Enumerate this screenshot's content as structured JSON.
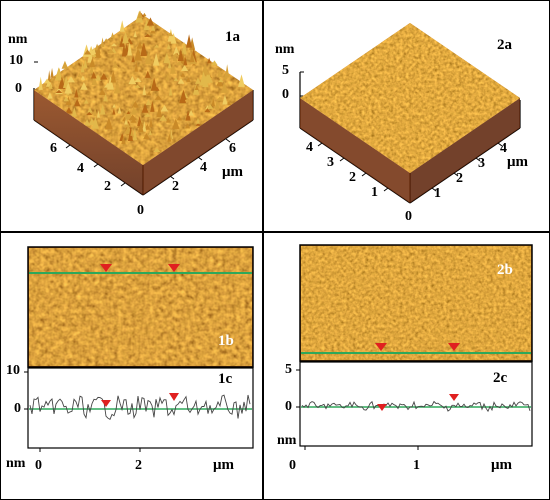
{
  "panel_1a": {
    "label": "1a",
    "z_unit": "nm",
    "z_ticks": [
      "10",
      "0"
    ],
    "left_axis_ticks": [
      "6",
      "4",
      "2"
    ],
    "right_axis_ticks": [
      "0",
      "2",
      "4",
      "6"
    ],
    "unit": "μm"
  },
  "panel_2a": {
    "label": "2a",
    "z_unit": "nm",
    "z_ticks": [
      "5",
      "0"
    ],
    "left_axis_ticks": [
      "4",
      "3",
      "2",
      "1"
    ],
    "right_axis_ticks": [
      "0",
      "1",
      "2",
      "3",
      "4"
    ],
    "unit": "μm"
  },
  "panel_1b": {
    "label": "1b"
  },
  "panel_1c": {
    "label": "1c",
    "y_ticks": [
      "10",
      "0"
    ],
    "y_unit": "nm",
    "x_ticks": [
      "0",
      "2"
    ],
    "x_unit": "μm"
  },
  "panel_2b": {
    "label": "2b"
  },
  "panel_2c": {
    "label": "2c",
    "y_ticks": [
      "5",
      "0"
    ],
    "y_unit": "nm",
    "x_ticks": [
      "0",
      "1"
    ],
    "x_unit": "μm"
  },
  "colors": {
    "surface_dark": "#7a2e08",
    "surface_mid": "#b8620f",
    "surface_light": "#e8c050",
    "profile_line": "#2ea85a",
    "marker": "#e02020"
  }
}
